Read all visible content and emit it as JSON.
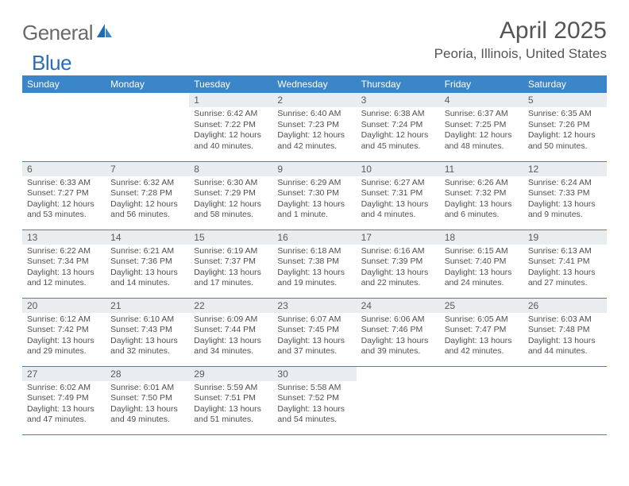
{
  "logo": {
    "text1": "General",
    "text2": "Blue"
  },
  "title": "April 2025",
  "location": "Peoria, Illinois, United States",
  "colors": {
    "header_bg": "#3b86c8",
    "header_text": "#ffffff",
    "daynum_bg": "#e9edef",
    "text": "#555555",
    "body_text": "#4f4f4f",
    "logo_gray": "#6a6a6a",
    "logo_blue": "#2a6db8",
    "row_border": "#3b86c8"
  },
  "day_names": [
    "Sunday",
    "Monday",
    "Tuesday",
    "Wednesday",
    "Thursday",
    "Friday",
    "Saturday"
  ],
  "weeks": [
    [
      null,
      null,
      {
        "n": "1",
        "sr": "6:42 AM",
        "ss": "7:22 PM",
        "dl": "12 hours and 40 minutes."
      },
      {
        "n": "2",
        "sr": "6:40 AM",
        "ss": "7:23 PM",
        "dl": "12 hours and 42 minutes."
      },
      {
        "n": "3",
        "sr": "6:38 AM",
        "ss": "7:24 PM",
        "dl": "12 hours and 45 minutes."
      },
      {
        "n": "4",
        "sr": "6:37 AM",
        "ss": "7:25 PM",
        "dl": "12 hours and 48 minutes."
      },
      {
        "n": "5",
        "sr": "6:35 AM",
        "ss": "7:26 PM",
        "dl": "12 hours and 50 minutes."
      }
    ],
    [
      {
        "n": "6",
        "sr": "6:33 AM",
        "ss": "7:27 PM",
        "dl": "12 hours and 53 minutes."
      },
      {
        "n": "7",
        "sr": "6:32 AM",
        "ss": "7:28 PM",
        "dl": "12 hours and 56 minutes."
      },
      {
        "n": "8",
        "sr": "6:30 AM",
        "ss": "7:29 PM",
        "dl": "12 hours and 58 minutes."
      },
      {
        "n": "9",
        "sr": "6:29 AM",
        "ss": "7:30 PM",
        "dl": "13 hours and 1 minute."
      },
      {
        "n": "10",
        "sr": "6:27 AM",
        "ss": "7:31 PM",
        "dl": "13 hours and 4 minutes."
      },
      {
        "n": "11",
        "sr": "6:26 AM",
        "ss": "7:32 PM",
        "dl": "13 hours and 6 minutes."
      },
      {
        "n": "12",
        "sr": "6:24 AM",
        "ss": "7:33 PM",
        "dl": "13 hours and 9 minutes."
      }
    ],
    [
      {
        "n": "13",
        "sr": "6:22 AM",
        "ss": "7:34 PM",
        "dl": "13 hours and 12 minutes."
      },
      {
        "n": "14",
        "sr": "6:21 AM",
        "ss": "7:36 PM",
        "dl": "13 hours and 14 minutes."
      },
      {
        "n": "15",
        "sr": "6:19 AM",
        "ss": "7:37 PM",
        "dl": "13 hours and 17 minutes."
      },
      {
        "n": "16",
        "sr": "6:18 AM",
        "ss": "7:38 PM",
        "dl": "13 hours and 19 minutes."
      },
      {
        "n": "17",
        "sr": "6:16 AM",
        "ss": "7:39 PM",
        "dl": "13 hours and 22 minutes."
      },
      {
        "n": "18",
        "sr": "6:15 AM",
        "ss": "7:40 PM",
        "dl": "13 hours and 24 minutes."
      },
      {
        "n": "19",
        "sr": "6:13 AM",
        "ss": "7:41 PM",
        "dl": "13 hours and 27 minutes."
      }
    ],
    [
      {
        "n": "20",
        "sr": "6:12 AM",
        "ss": "7:42 PM",
        "dl": "13 hours and 29 minutes."
      },
      {
        "n": "21",
        "sr": "6:10 AM",
        "ss": "7:43 PM",
        "dl": "13 hours and 32 minutes."
      },
      {
        "n": "22",
        "sr": "6:09 AM",
        "ss": "7:44 PM",
        "dl": "13 hours and 34 minutes."
      },
      {
        "n": "23",
        "sr": "6:07 AM",
        "ss": "7:45 PM",
        "dl": "13 hours and 37 minutes."
      },
      {
        "n": "24",
        "sr": "6:06 AM",
        "ss": "7:46 PM",
        "dl": "13 hours and 39 minutes."
      },
      {
        "n": "25",
        "sr": "6:05 AM",
        "ss": "7:47 PM",
        "dl": "13 hours and 42 minutes."
      },
      {
        "n": "26",
        "sr": "6:03 AM",
        "ss": "7:48 PM",
        "dl": "13 hours and 44 minutes."
      }
    ],
    [
      {
        "n": "27",
        "sr": "6:02 AM",
        "ss": "7:49 PM",
        "dl": "13 hours and 47 minutes."
      },
      {
        "n": "28",
        "sr": "6:01 AM",
        "ss": "7:50 PM",
        "dl": "13 hours and 49 minutes."
      },
      {
        "n": "29",
        "sr": "5:59 AM",
        "ss": "7:51 PM",
        "dl": "13 hours and 51 minutes."
      },
      {
        "n": "30",
        "sr": "5:58 AM",
        "ss": "7:52 PM",
        "dl": "13 hours and 54 minutes."
      },
      null,
      null,
      null
    ]
  ],
  "labels": {
    "sunrise": "Sunrise:",
    "sunset": "Sunset:",
    "daylight": "Daylight:"
  }
}
